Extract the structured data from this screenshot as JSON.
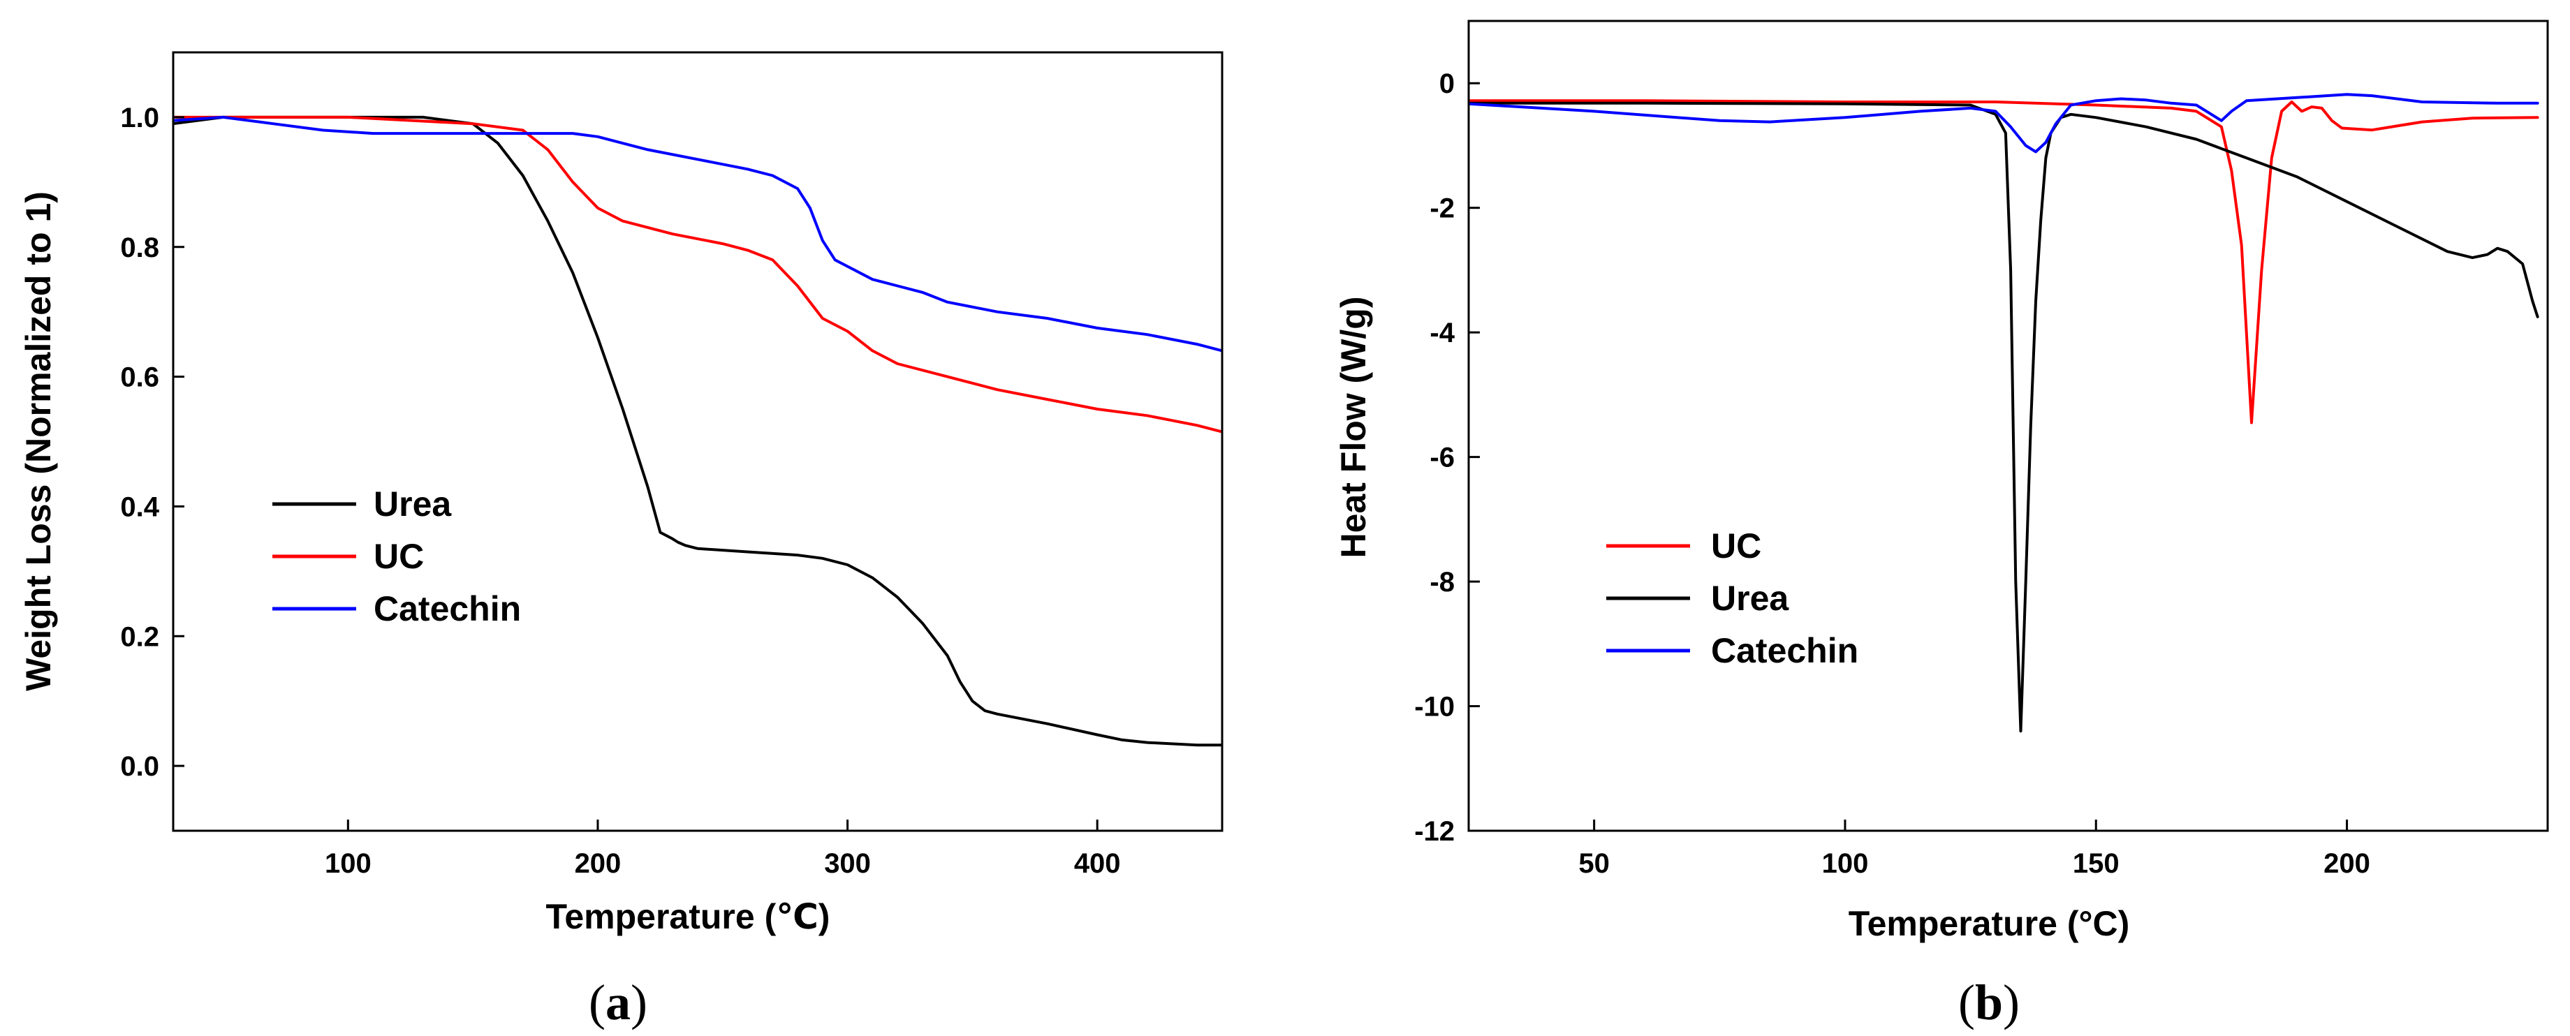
{
  "chart_data": [
    {
      "type": "line",
      "panel_label": "(a)",
      "caption_letter": "a",
      "title": "",
      "xlabel": "Temperature (℃)",
      "ylabel": "Weight Loss (Normalized to 1)",
      "xlim": [
        30,
        450
      ],
      "ylim": [
        -0.1,
        1.1
      ],
      "xticks": [
        100,
        200,
        300,
        400
      ],
      "yticks": [
        0.0,
        0.2,
        0.4,
        0.6,
        0.8,
        1.0
      ],
      "xtick_labels": [
        "100",
        "200",
        "300",
        "400"
      ],
      "ytick_labels": [
        "0.0",
        "0.2",
        "0.4",
        "0.6",
        "0.8",
        "1.0"
      ],
      "grid": false,
      "legend_position": "bottom-left",
      "series": [
        {
          "name": "Urea",
          "color": "#000000",
          "x": [
            30,
            50,
            80,
            110,
            130,
            150,
            160,
            170,
            180,
            190,
            200,
            210,
            220,
            225,
            230,
            232,
            235,
            240,
            260,
            280,
            290,
            300,
            310,
            320,
            330,
            340,
            345,
            350,
            355,
            360,
            380,
            400,
            410,
            420,
            440,
            450
          ],
          "y": [
            0.99,
            1.0,
            1.0,
            1.0,
            1.0,
            0.99,
            0.96,
            0.91,
            0.84,
            0.76,
            0.66,
            0.55,
            0.43,
            0.36,
            0.35,
            0.345,
            0.34,
            0.335,
            0.33,
            0.325,
            0.32,
            0.31,
            0.29,
            0.26,
            0.22,
            0.17,
            0.13,
            0.1,
            0.085,
            0.08,
            0.065,
            0.048,
            0.04,
            0.036,
            0.032,
            0.032
          ]
        },
        {
          "name": "UC",
          "color": "#ff0000",
          "x": [
            30,
            50,
            100,
            150,
            170,
            180,
            190,
            200,
            210,
            230,
            250,
            260,
            270,
            280,
            290,
            300,
            310,
            320,
            340,
            360,
            380,
            400,
            420,
            440,
            450
          ],
          "y": [
            1.0,
            1.0,
            1.0,
            0.99,
            0.98,
            0.95,
            0.9,
            0.86,
            0.84,
            0.82,
            0.805,
            0.795,
            0.78,
            0.74,
            0.69,
            0.67,
            0.64,
            0.62,
            0.6,
            0.58,
            0.565,
            0.55,
            0.54,
            0.525,
            0.515
          ]
        },
        {
          "name": "Catechin",
          "color": "#0000ff",
          "x": [
            30,
            50,
            70,
            90,
            110,
            140,
            160,
            190,
            200,
            220,
            240,
            260,
            270,
            280,
            285,
            290,
            295,
            300,
            310,
            320,
            330,
            340,
            360,
            380,
            400,
            420,
            440,
            450
          ],
          "y": [
            0.995,
            1.0,
            0.99,
            0.98,
            0.975,
            0.975,
            0.975,
            0.975,
            0.97,
            0.95,
            0.935,
            0.92,
            0.91,
            0.89,
            0.86,
            0.81,
            0.78,
            0.77,
            0.75,
            0.74,
            0.73,
            0.715,
            0.7,
            0.69,
            0.675,
            0.665,
            0.65,
            0.64
          ]
        }
      ]
    },
    {
      "type": "line",
      "panel_label": "(b)",
      "caption_letter": "b",
      "title": "",
      "xlabel": "Temperature (°C)",
      "ylabel": "Heat Flow (W/g)",
      "xlim": [
        25,
        240
      ],
      "ylim": [
        -12,
        1
      ],
      "xticks": [
        50,
        100,
        150,
        200
      ],
      "yticks": [
        0,
        -2,
        -4,
        -6,
        -8,
        -10,
        -12
      ],
      "xtick_labels": [
        "50",
        "100",
        "150",
        "200"
      ],
      "ytick_labels": [
        "0",
        "-2",
        "-4",
        "-6",
        "-8",
        "-10",
        "-12"
      ],
      "grid": false,
      "legend_position": "bottom-left",
      "series": [
        {
          "name": "UC",
          "color": "#ff0000",
          "x": [
            25,
            60,
            100,
            130,
            150,
            165,
            170,
            175,
            177,
            179,
            181,
            183,
            185,
            187,
            189,
            191,
            193,
            195,
            197,
            199,
            205,
            215,
            225,
            238
          ],
          "y": [
            -0.28,
            -0.28,
            -0.3,
            -0.3,
            -0.35,
            -0.4,
            -0.45,
            -0.7,
            -1.4,
            -2.6,
            -5.45,
            -3.0,
            -1.2,
            -0.45,
            -0.3,
            -0.45,
            -0.38,
            -0.4,
            -0.6,
            -0.72,
            -0.75,
            -0.62,
            -0.56,
            -0.55
          ]
        },
        {
          "name": "Urea",
          "color": "#000000",
          "x": [
            25,
            60,
            100,
            125,
            130,
            132,
            133,
            134,
            135,
            136,
            137,
            138,
            139,
            140,
            141,
            143,
            145,
            150,
            160,
            170,
            180,
            190,
            200,
            210,
            220,
            225,
            228,
            230,
            232,
            235,
            237,
            238
          ],
          "y": [
            -0.32,
            -0.32,
            -0.33,
            -0.35,
            -0.5,
            -0.8,
            -3.0,
            -8.0,
            -10.4,
            -8.0,
            -5.5,
            -3.5,
            -2.2,
            -1.2,
            -0.8,
            -0.55,
            -0.5,
            -0.55,
            -0.7,
            -0.9,
            -1.2,
            -1.5,
            -1.9,
            -2.3,
            -2.7,
            -2.8,
            -2.75,
            -2.65,
            -2.7,
            -2.9,
            -3.5,
            -3.75
          ]
        },
        {
          "name": "Catechin",
          "color": "#0000ff",
          "x": [
            25,
            50,
            75,
            85,
            100,
            115,
            125,
            130,
            133,
            136,
            138,
            140,
            142,
            145,
            150,
            155,
            160,
            165,
            170,
            173,
            175,
            177,
            180,
            190,
            200,
            205,
            215,
            230,
            238
          ],
          "y": [
            -0.33,
            -0.45,
            -0.6,
            -0.62,
            -0.55,
            -0.45,
            -0.4,
            -0.45,
            -0.7,
            -1.0,
            -1.1,
            -0.95,
            -0.65,
            -0.35,
            -0.28,
            -0.25,
            -0.27,
            -0.32,
            -0.35,
            -0.5,
            -0.6,
            -0.45,
            -0.28,
            -0.23,
            -0.18,
            -0.2,
            -0.3,
            -0.32,
            -0.32
          ]
        }
      ]
    }
  ]
}
